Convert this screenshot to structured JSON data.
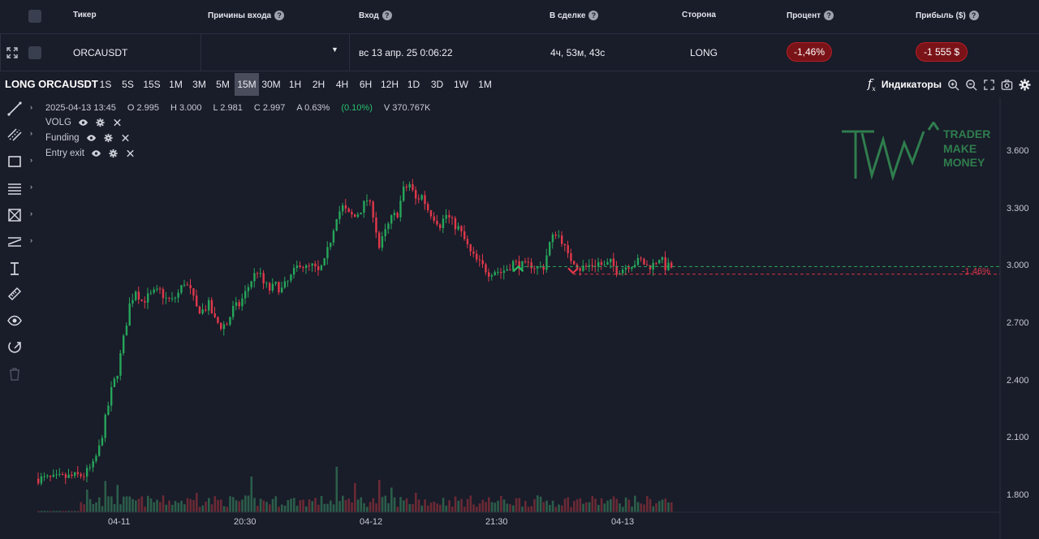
{
  "table": {
    "headers": {
      "ticker": "Тикер",
      "reasons": "Причины входа",
      "entry": "Вход",
      "in_trade": "В сделке",
      "side": "Сторона",
      "percent": "Процент",
      "profit": "Прибыль ($)"
    },
    "row": {
      "ticker": "ORCAUSDT",
      "reasons": "",
      "entry": "вс 13 апр. 25 0:06:22",
      "in_trade": "4ч, 53м, 43с",
      "side": "LONG",
      "percent": "-1,46%",
      "profit": "-1 555 $"
    }
  },
  "toolbar": {
    "title": "LONG ORCAUSDT",
    "timeframes": [
      "1S",
      "5S",
      "15S",
      "1M",
      "3M",
      "5M",
      "15M",
      "30M",
      "1H",
      "2H",
      "4H",
      "6H",
      "12H",
      "1D",
      "3D",
      "1W",
      "1M"
    ],
    "active_timeframe": "15M",
    "indicators_label": "Индикаторы"
  },
  "legend": {
    "date": "2025-04-13 13:45",
    "open": "O 2.995",
    "high": "H 3.000",
    "low": "L 2.981",
    "close": "C 2.997",
    "amplitude": "A 0.63%",
    "change": "(0.10%)",
    "volume": "V 370.767K",
    "indicators": [
      "VOLG",
      "Funding",
      "Entry exit"
    ]
  },
  "logo": {
    "line1": "TRADER",
    "line2": "MAKE",
    "line3": "MONEY"
  },
  "colors": {
    "up": "#26a65b",
    "down": "#e0384a",
    "bg": "#191c29",
    "loss_pill": "#7a1318"
  },
  "chart_data": {
    "type": "candlestick",
    "y_ticks": [
      "3.600",
      "3.300",
      "3.000",
      "2.700",
      "2.400",
      "2.100",
      "1.800"
    ],
    "x_ticks": [
      "04-11",
      "20:30",
      "04-12",
      "21:30",
      "04-13"
    ],
    "close_path": [
      [
        0,
        1.891
      ],
      [
        5,
        1.89
      ],
      [
        10,
        1.9
      ],
      [
        15,
        1.91
      ],
      [
        18,
        1.96
      ],
      [
        20,
        2.05
      ],
      [
        22,
        2.2
      ],
      [
        24,
        2.35
      ],
      [
        26,
        2.45
      ],
      [
        28,
        2.62
      ],
      [
        30,
        2.8
      ],
      [
        32,
        2.88
      ],
      [
        34,
        2.82
      ],
      [
        36,
        2.84
      ],
      [
        38,
        2.86
      ],
      [
        40,
        2.87
      ],
      [
        42,
        2.83
      ],
      [
        44,
        2.82
      ],
      [
        46,
        2.86
      ],
      [
        48,
        2.92
      ],
      [
        50,
        2.87
      ],
      [
        52,
        2.78
      ],
      [
        54,
        2.77
      ],
      [
        56,
        2.8
      ],
      [
        58,
        2.72
      ],
      [
        60,
        2.69
      ],
      [
        62,
        2.7
      ],
      [
        64,
        2.78
      ],
      [
        66,
        2.8
      ],
      [
        68,
        2.86
      ],
      [
        70,
        2.93
      ],
      [
        72,
        2.98
      ],
      [
        74,
        2.91
      ],
      [
        76,
        2.88
      ],
      [
        78,
        2.9
      ],
      [
        80,
        2.88
      ],
      [
        82,
        2.92
      ],
      [
        84,
        2.97
      ],
      [
        86,
        3.02
      ],
      [
        88,
        2.99
      ],
      [
        90,
        3.0
      ],
      [
        92,
        2.97
      ],
      [
        94,
        3.02
      ],
      [
        96,
        3.14
      ],
      [
        98,
        3.27
      ],
      [
        100,
        3.31
      ],
      [
        102,
        3.27
      ],
      [
        104,
        3.26
      ],
      [
        106,
        3.3
      ],
      [
        108,
        3.35
      ],
      [
        110,
        3.28
      ],
      [
        112,
        3.1
      ],
      [
        114,
        3.18
      ],
      [
        116,
        3.25
      ],
      [
        118,
        3.28
      ],
      [
        120,
        3.4
      ],
      [
        122,
        3.43
      ],
      [
        124,
        3.35
      ],
      [
        126,
        3.37
      ],
      [
        128,
        3.3
      ],
      [
        130,
        3.26
      ],
      [
        132,
        3.22
      ],
      [
        134,
        3.27
      ],
      [
        136,
        3.23
      ],
      [
        138,
        3.2
      ],
      [
        140,
        3.14
      ],
      [
        142,
        3.07
      ],
      [
        144,
        3.03
      ],
      [
        146,
        3.0
      ],
      [
        148,
        2.97
      ],
      [
        150,
        2.98
      ],
      [
        152,
        2.97
      ],
      [
        154,
        2.99
      ],
      [
        156,
        3.02
      ],
      [
        158,
        3.01
      ],
      [
        160,
        3.0
      ],
      [
        162,
        3.01
      ],
      [
        164,
        2.99
      ],
      [
        166,
        3.0
      ],
      [
        168,
        3.12
      ],
      [
        170,
        3.18
      ],
      [
        172,
        3.14
      ],
      [
        174,
        3.05
      ],
      [
        176,
        3.03
      ],
      [
        178,
        2.99
      ],
      [
        180,
        3.0
      ],
      [
        182,
        3.01
      ],
      [
        184,
        3.02
      ],
      [
        186,
        3.0
      ],
      [
        188,
        3.02
      ],
      [
        190,
        2.98
      ],
      [
        192,
        2.99
      ],
      [
        194,
        3.01
      ],
      [
        196,
        3.02
      ],
      [
        198,
        3.03
      ],
      [
        200,
        3.0
      ],
      [
        202,
        3.01
      ],
      [
        204,
        3.05
      ],
      [
        206,
        3.0
      ],
      [
        208,
        2.997
      ]
    ],
    "volume_spikes": [
      [
        16,
        0.35
      ],
      [
        22,
        0.48
      ],
      [
        26,
        0.42
      ],
      [
        52,
        0.3
      ],
      [
        70,
        0.55
      ],
      [
        98,
        0.7
      ],
      [
        104,
        0.45
      ],
      [
        112,
        0.5
      ],
      [
        116,
        0.38
      ],
      [
        124,
        0.3
      ]
    ],
    "entry_price": 3.0,
    "stop_price": 2.96,
    "result_label": "-1.46%"
  }
}
